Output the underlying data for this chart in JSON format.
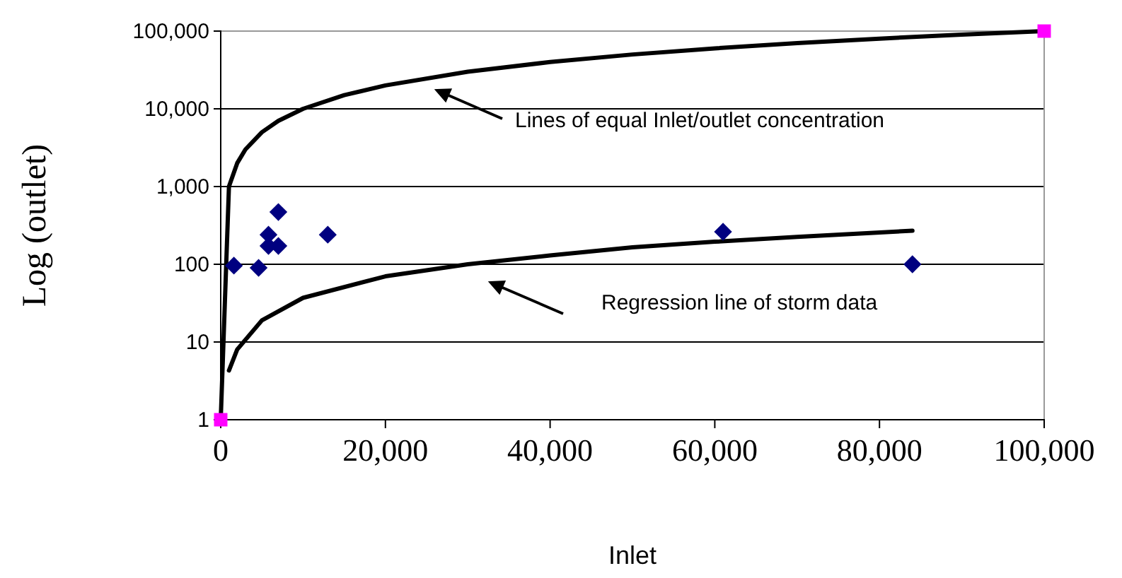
{
  "chart_data": {
    "type": "scatter",
    "xlabel": "Inlet",
    "ylabel": "Log (outlet)",
    "log": "y",
    "grid": "y",
    "xlim": [
      0,
      100000
    ],
    "ylim": [
      1,
      100000
    ],
    "xticks": [
      {
        "value": 0,
        "label": "0"
      },
      {
        "value": 20000,
        "label": "20,000"
      },
      {
        "value": 40000,
        "label": "40,000"
      },
      {
        "value": 60000,
        "label": "60,000"
      },
      {
        "value": 80000,
        "label": "80,000"
      },
      {
        "value": 100000,
        "label": "100,000"
      }
    ],
    "yticks": [
      1,
      10,
      100,
      {
        "value": 1000,
        "label": "1,000"
      },
      {
        "value": 10000,
        "label": "10,000"
      },
      {
        "value": 100000,
        "label": "100,000"
      }
    ],
    "series": [
      {
        "type": "line",
        "color": "#000000",
        "marker": "none",
        "x": [
          1,
          1000,
          2000,
          3000,
          5000,
          7000,
          10000,
          15000,
          20000,
          30000,
          40000,
          50000,
          60000,
          70000,
          80000,
          90000,
          100000
        ],
        "values": [
          1,
          1000,
          2000,
          3000,
          5000,
          7000,
          10000,
          15000,
          20000,
          30000,
          40000,
          50000,
          60000,
          70000,
          80000,
          90000,
          100000
        ]
      },
      {
        "type": "line",
        "color": "#000000",
        "marker": "none",
        "x": [
          1000,
          2000,
          5000,
          10000,
          20000,
          30000,
          40000,
          50000,
          60000,
          70000,
          84000
        ],
        "values": [
          4.3,
          8,
          19,
          37,
          70,
          100,
          130,
          165,
          195,
          225,
          270
        ]
      },
      {
        "color": "#000080",
        "marker": "diamond",
        "x": [
          1600,
          4600,
          5800,
          5800,
          7000,
          7000,
          13000,
          61000,
          84000
        ],
        "values": [
          96,
          90,
          172,
          240,
          172,
          470,
          240,
          262,
          100
        ]
      },
      {
        "type": "scatter",
        "color": "#ff00ff",
        "marker": "square",
        "x": [
          0,
          100000
        ],
        "values": [
          1,
          100000
        ]
      }
    ],
    "annotations": [
      "Lines of equal Inlet/outlet concentration",
      "Regression line of storm data"
    ]
  }
}
